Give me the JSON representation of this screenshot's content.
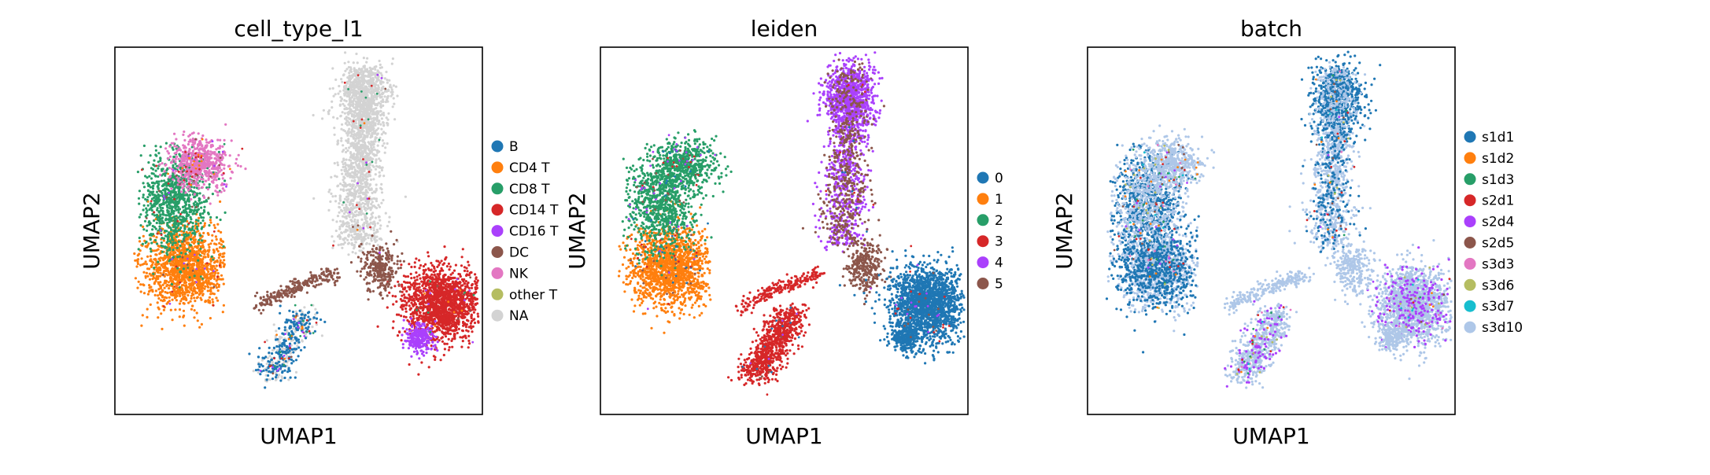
{
  "figure": {
    "description_free": true
  },
  "chart_data": [
    {
      "type": "scatter",
      "title": "cell_type_l1",
      "xlabel": "UMAP1",
      "ylabel": "UMAP2",
      "grid": false,
      "legend_placement": "right",
      "legend": [
        {
          "label": "B",
          "color": "#1f77b4"
        },
        {
          "label": "CD4 T",
          "color": "#ff7f0e"
        },
        {
          "label": "CD8 T",
          "color": "#279e68"
        },
        {
          "label": "CD14 T",
          "color": "#d62728"
        },
        {
          "label": "CD16 T",
          "color": "#aa40fc"
        },
        {
          "label": "DC",
          "color": "#8c564b"
        },
        {
          "label": "NK",
          "color": "#e377c2"
        },
        {
          "label": "other T",
          "color": "#b5bd61"
        },
        {
          "label": "NA",
          "color": "#d3d3d3"
        }
      ]
    },
    {
      "type": "scatter",
      "title": "leiden",
      "xlabel": "UMAP1",
      "ylabel": "UMAP2",
      "grid": false,
      "legend_placement": "right",
      "legend": [
        {
          "label": "0",
          "color": "#1f77b4"
        },
        {
          "label": "1",
          "color": "#ff7f0e"
        },
        {
          "label": "2",
          "color": "#279e68"
        },
        {
          "label": "3",
          "color": "#d62728"
        },
        {
          "label": "4",
          "color": "#aa40fc"
        },
        {
          "label": "5",
          "color": "#8c564b"
        }
      ]
    },
    {
      "type": "scatter",
      "title": "batch",
      "xlabel": "UMAP1",
      "ylabel": "UMAP2",
      "grid": false,
      "legend_placement": "right",
      "legend": [
        {
          "label": "s1d1",
          "color": "#1f77b4"
        },
        {
          "label": "s1d2",
          "color": "#ff7f0e"
        },
        {
          "label": "s1d3",
          "color": "#279e68"
        },
        {
          "label": "s2d1",
          "color": "#d62728"
        },
        {
          "label": "s2d4",
          "color": "#aa40fc"
        },
        {
          "label": "s2d5",
          "color": "#8c564b"
        },
        {
          "label": "s3d3",
          "color": "#e377c2"
        },
        {
          "label": "s3d6",
          "color": "#b5bd61"
        },
        {
          "label": "s3d7",
          "color": "#17becf"
        },
        {
          "label": "s3d10",
          "color": "#aec7e8"
        }
      ]
    }
  ]
}
